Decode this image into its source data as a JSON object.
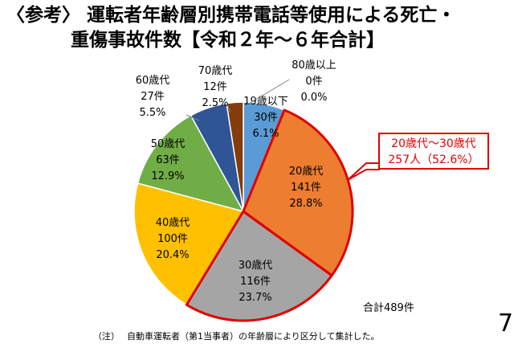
{
  "title": {
    "line1": "〈参考〉 運転者年齢層別携帯電話等使用による死亡・",
    "line2": "重傷事故件数【令和２年～６年合計】"
  },
  "chart_data": {
    "type": "pie",
    "categories": [
      "19歳以下",
      "20歳代",
      "30歳代",
      "40歳代",
      "50歳代",
      "60歳代",
      "70歳代",
      "80歳以上"
    ],
    "values": [
      30,
      141,
      116,
      100,
      63,
      27,
      12,
      0
    ],
    "value_labels": [
      "30件",
      "141件",
      "116件",
      "100件",
      "63件",
      "27件",
      "12件",
      "0件"
    ],
    "percent_labels": [
      "6.1%",
      "28.8%",
      "23.7%",
      "20.4%",
      "12.9%",
      "5.5%",
      "2.5%",
      "0.0%"
    ],
    "colors": [
      "#5b9bd5",
      "#ed7d31",
      "#a5a5a5",
      "#ffc000",
      "#70ad47",
      "#2f5597",
      "#843c0c",
      "#264478"
    ],
    "highlight": [
      "20歳代",
      "30歳代"
    ],
    "highlight_color": "#e00000"
  },
  "callout": {
    "line1": "20歳代～30歳代",
    "line2": "257人（52.6%）"
  },
  "total_label": "合計489件",
  "footnote": "（注）　 自動車運転者（第1当事者）の年齢層により区分して集計した。",
  "page_number": "7"
}
